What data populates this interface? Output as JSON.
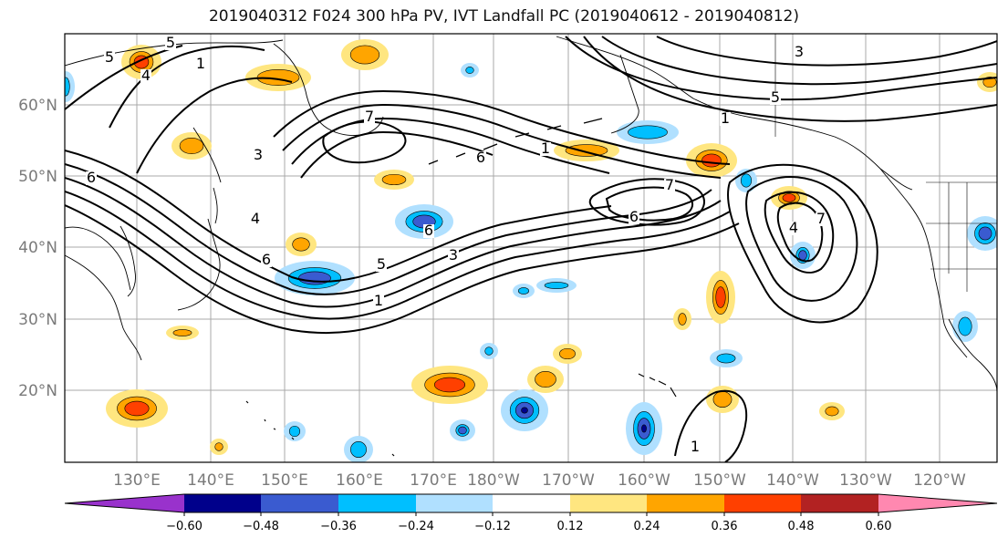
{
  "title": "2019040312 F024 300 hPa PV, IVT Landfall PC (2019040612 - 2019040812)",
  "lat_labels": [
    "60°N",
    "50°N",
    "40°N",
    "30°N",
    "20°N"
  ],
  "lon_labels": [
    "130°E",
    "140°E",
    "150°E",
    "160°E",
    "170°E",
    "180°W",
    "170°W",
    "160°W",
    "150°W",
    "140°W",
    "130°W",
    "120°W"
  ],
  "contour_labels": [
    "1",
    "1",
    "1",
    "1",
    "1",
    "3",
    "3",
    "3",
    "4",
    "4",
    "5",
    "5",
    "5",
    "5",
    "6",
    "6",
    "6",
    "6",
    "6",
    "7",
    "7",
    "7",
    "4"
  ],
  "colorbar": {
    "ticks": [
      "−0.60",
      "−0.48",
      "−0.36",
      "−0.24",
      "−0.12",
      "0.12",
      "0.24",
      "0.36",
      "0.48",
      "0.60"
    ],
    "colors": [
      "#9932cc",
      "#00008b",
      "#3a5bd0",
      "#00bfff",
      "#b0e0ff",
      "#ffffff",
      "#ffe680",
      "#ffa500",
      "#ff4000",
      "#b22222",
      "#ff88b0"
    ]
  },
  "shading": {
    "pos_light": "#ffe680",
    "pos_mid": "#ffa500",
    "pos_high": "#ff4000",
    "neg_light": "#b0e0ff",
    "neg_mid": "#00bfff",
    "neg_high": "#3a5bd0",
    "neg_max": "#00008b"
  }
}
